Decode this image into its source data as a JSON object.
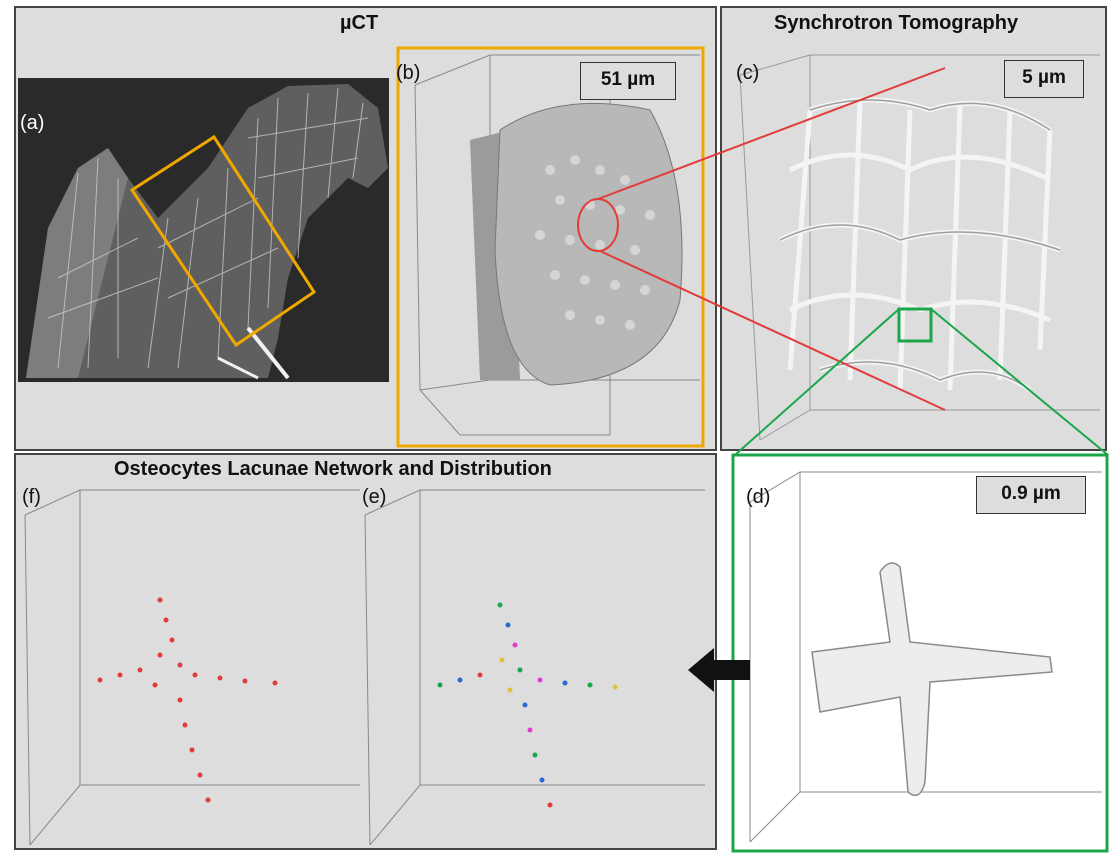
{
  "colors": {
    "panel_bg": "#dddddd",
    "orange": "#f0a800",
    "green": "#1aa64a",
    "red": "#e23b3b"
  },
  "panels": {
    "uct": {
      "title": "µCT"
    },
    "synchrotron": {
      "title": "Synchrotron Tomography"
    },
    "osteocytes": {
      "title": "Osteocytes Lacunae Network and Distribution"
    }
  },
  "labels": {
    "a": "(a)",
    "b": "(b)",
    "c": "(c)",
    "d": "(d)",
    "e": "(e)",
    "f": "(f)"
  },
  "scale_bars": {
    "b": "51 µm",
    "c": "5 µm",
    "d": "0.9 µm"
  },
  "icons": {
    "arrow": "left-arrow-icon"
  }
}
